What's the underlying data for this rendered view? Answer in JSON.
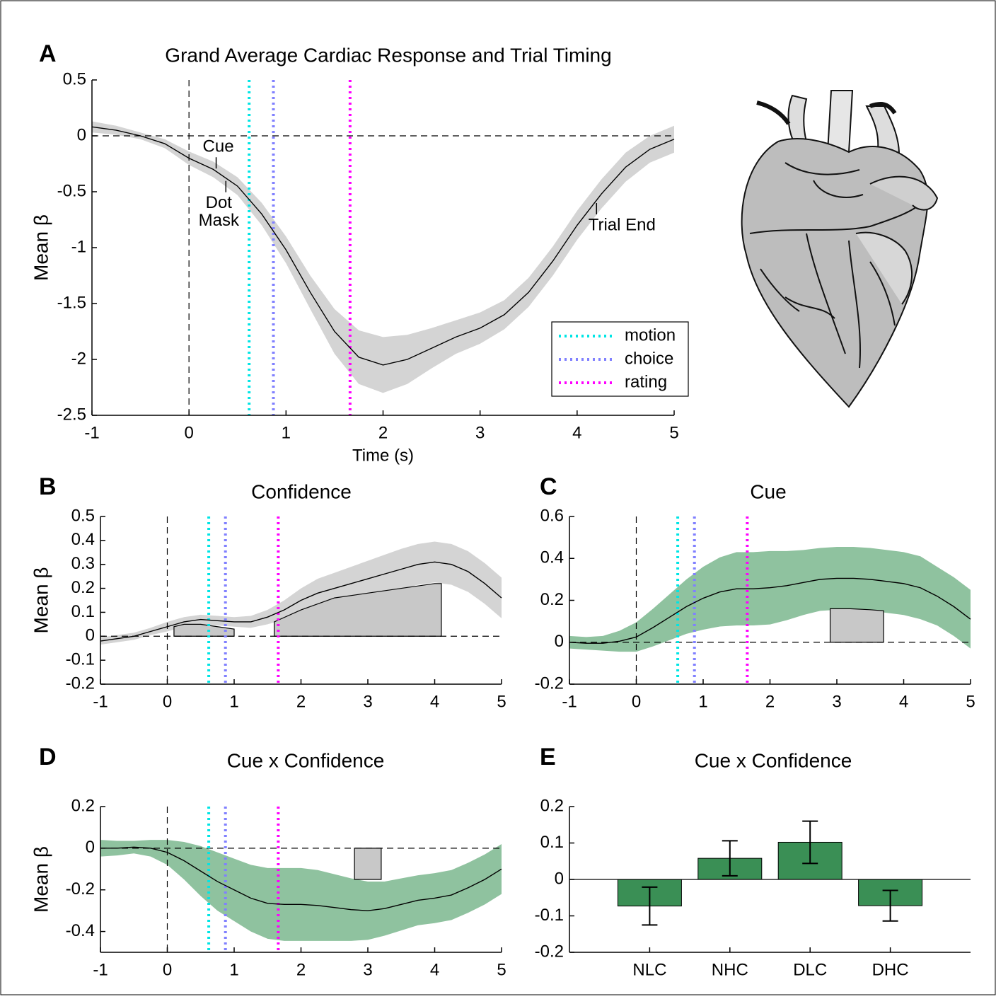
{
  "chart_data": [
    {
      "type": "line",
      "panel": "A",
      "title": "Grand Average Cardiac Response and Trial Timing",
      "x_label": "Time (s)",
      "y_label": "Mean β",
      "x": [
        -1,
        -0.75,
        -0.5,
        -0.25,
        0,
        0.25,
        0.5,
        0.75,
        1,
        1.25,
        1.5,
        1.75,
        2,
        2.25,
        2.5,
        2.75,
        3,
        3.25,
        3.5,
        3.75,
        4,
        4.25,
        4.5,
        4.75,
        5
      ],
      "series": [
        {
          "color": "#000000",
          "band_color": "#d4d4d4",
          "values": [
            0.08,
            0.05,
            0.0,
            -0.07,
            -0.2,
            -0.3,
            -0.45,
            -0.7,
            -1.02,
            -1.4,
            -1.75,
            -1.98,
            -2.05,
            -2.0,
            -1.9,
            -1.8,
            -1.72,
            -1.6,
            -1.4,
            -1.12,
            -0.8,
            -0.52,
            -0.28,
            -0.12,
            -0.03
          ],
          "error": [
            0.05,
            0.04,
            0.03,
            0.04,
            0.06,
            0.07,
            0.08,
            0.1,
            0.12,
            0.15,
            0.2,
            0.24,
            0.25,
            0.22,
            0.18,
            0.15,
            0.14,
            0.13,
            0.13,
            0.13,
            0.13,
            0.13,
            0.13,
            0.12,
            0.12
          ]
        }
      ],
      "markers": [
        {
          "name": "motion",
          "color": "#00e5e5",
          "x": 0.62
        },
        {
          "name": "choice",
          "color": "#8080ff",
          "x": 0.87
        },
        {
          "name": "rating",
          "color": "#ff00ff",
          "x": 1.66
        }
      ],
      "annotations": [
        {
          "lines": [
            "Cue"
          ],
          "x": 0.28
        },
        {
          "lines": [
            "Dot",
            "Mask"
          ],
          "x": 0.38
        },
        {
          "lines": [
            "Trial End"
          ],
          "x": 4.2
        }
      ],
      "legend": "lower right",
      "xlim": [
        -1,
        5
      ],
      "xticks": [
        -1,
        0,
        1,
        2,
        3,
        4,
        5
      ],
      "ylim": [
        -2.5,
        0.5
      ],
      "yticks": [
        -2.5,
        -2,
        -1.5,
        -1,
        -0.5,
        0,
        0.5
      ]
    },
    {
      "type": "line",
      "panel": "B",
      "title": "Confidence",
      "y_label": "Mean β",
      "x": [
        -1,
        -0.75,
        -0.5,
        -0.25,
        0,
        0.25,
        0.5,
        0.75,
        1,
        1.25,
        1.5,
        1.75,
        2,
        2.25,
        2.5,
        2.75,
        3,
        3.25,
        3.5,
        3.75,
        4,
        4.25,
        4.5,
        4.75,
        5
      ],
      "series": [
        {
          "color": "#000000",
          "band_color": "#d4d4d4",
          "values": [
            -0.02,
            -0.01,
            0.0,
            0.02,
            0.04,
            0.06,
            0.07,
            0.065,
            0.06,
            0.06,
            0.08,
            0.11,
            0.15,
            0.18,
            0.2,
            0.22,
            0.24,
            0.26,
            0.28,
            0.3,
            0.31,
            0.3,
            0.27,
            0.22,
            0.16
          ],
          "error": [
            0.015,
            0.015,
            0.015,
            0.015,
            0.02,
            0.02,
            0.02,
            0.02,
            0.02,
            0.025,
            0.03,
            0.04,
            0.05,
            0.06,
            0.065,
            0.07,
            0.075,
            0.08,
            0.085,
            0.085,
            0.085,
            0.085,
            0.085,
            0.085,
            0.085
          ]
        }
      ],
      "markers": [
        {
          "color": "#00e5e5",
          "x": 0.62
        },
        {
          "color": "#8080ff",
          "x": 0.87
        },
        {
          "color": "#ff00ff",
          "x": 1.66
        }
      ],
      "regions": [
        {
          "x": [
            0.1,
            0.25,
            0.5,
            0.75,
            1.0
          ],
          "values": [
            0.04,
            0.05,
            0.05,
            0.04,
            0.03
          ]
        },
        {
          "x": [
            1.6,
            2,
            2.5,
            3,
            3.5,
            4,
            4.1
          ],
          "values": [
            0.06,
            0.11,
            0.16,
            0.18,
            0.2,
            0.22,
            0.22
          ]
        }
      ],
      "xlim": [
        -1,
        5
      ],
      "xticks": [
        -1,
        0,
        1,
        2,
        3,
        4,
        5
      ],
      "ylim": [
        -0.2,
        0.5
      ],
      "yticks": [
        -0.2,
        -0.1,
        0,
        0.1,
        0.2,
        0.3,
        0.4,
        0.5
      ]
    },
    {
      "type": "line",
      "panel": "C",
      "title": "Cue",
      "x": [
        -1,
        -0.75,
        -0.5,
        -0.25,
        0,
        0.25,
        0.5,
        0.75,
        1,
        1.25,
        1.5,
        1.75,
        2,
        2.25,
        2.5,
        2.75,
        3,
        3.25,
        3.5,
        3.75,
        4,
        4.25,
        4.5,
        4.75,
        5
      ],
      "series": [
        {
          "color": "#000000",
          "band_color": "#8fc29f",
          "values": [
            0.0,
            -0.005,
            -0.005,
            0.005,
            0.025,
            0.07,
            0.12,
            0.17,
            0.21,
            0.24,
            0.255,
            0.255,
            0.26,
            0.27,
            0.285,
            0.3,
            0.305,
            0.305,
            0.3,
            0.29,
            0.28,
            0.26,
            0.22,
            0.17,
            0.11
          ],
          "error": [
            0.03,
            0.03,
            0.035,
            0.05,
            0.07,
            0.09,
            0.11,
            0.13,
            0.15,
            0.165,
            0.175,
            0.175,
            0.175,
            0.165,
            0.155,
            0.15,
            0.15,
            0.15,
            0.15,
            0.15,
            0.15,
            0.15,
            0.14,
            0.14,
            0.14
          ]
        }
      ],
      "markers": [
        {
          "color": "#00e5e5",
          "x": 0.62
        },
        {
          "color": "#8080ff",
          "x": 0.87
        },
        {
          "color": "#ff00ff",
          "x": 1.66
        }
      ],
      "regions": [
        {
          "x": [
            2.9,
            3.2,
            3.5,
            3.7
          ],
          "values": [
            0.16,
            0.16,
            0.155,
            0.15
          ]
        }
      ],
      "xlim": [
        -1,
        5
      ],
      "xticks": [
        -1,
        0,
        1,
        2,
        3,
        4,
        5
      ],
      "ylim": [
        -0.2,
        0.6
      ],
      "yticks": [
        -0.2,
        0,
        0.2,
        0.4,
        0.6
      ]
    },
    {
      "type": "line",
      "panel": "D",
      "title": "Cue x Confidence",
      "y_label": "Mean β",
      "x": [
        -1,
        -0.75,
        -0.5,
        -0.25,
        0,
        0.25,
        0.5,
        0.75,
        1,
        1.25,
        1.5,
        1.75,
        2,
        2.25,
        2.5,
        2.75,
        3,
        3.25,
        3.5,
        3.75,
        4,
        4.25,
        4.5,
        4.75,
        5
      ],
      "series": [
        {
          "color": "#000000",
          "band_color": "#8fc29f",
          "values": [
            0.0,
            0.0,
            0.005,
            0.0,
            -0.02,
            -0.06,
            -0.11,
            -0.16,
            -0.2,
            -0.24,
            -0.265,
            -0.27,
            -0.27,
            -0.275,
            -0.285,
            -0.295,
            -0.3,
            -0.29,
            -0.27,
            -0.25,
            -0.24,
            -0.225,
            -0.19,
            -0.15,
            -0.1
          ],
          "error": [
            0.04,
            0.035,
            0.03,
            0.04,
            0.06,
            0.09,
            0.12,
            0.14,
            0.15,
            0.16,
            0.17,
            0.175,
            0.175,
            0.17,
            0.16,
            0.15,
            0.14,
            0.13,
            0.125,
            0.12,
            0.12,
            0.12,
            0.12,
            0.12,
            0.12
          ]
        }
      ],
      "markers": [
        {
          "color": "#00e5e5",
          "x": 0.62
        },
        {
          "color": "#8080ff",
          "x": 0.87
        },
        {
          "color": "#ff00ff",
          "x": 1.66
        }
      ],
      "regions": [
        {
          "x": [
            2.8,
            3.2
          ],
          "values": [
            -0.15,
            -0.15
          ]
        }
      ],
      "xlim": [
        -1,
        5
      ],
      "xticks": [
        -1,
        0,
        1,
        2,
        3,
        4,
        5
      ],
      "ylim": [
        -0.5,
        0.2
      ],
      "yticks": [
        -0.4,
        -0.2,
        0,
        0.2
      ]
    },
    {
      "type": "bar",
      "panel": "E",
      "title": "Cue x Confidence",
      "categories": [
        "NLC",
        "NHC",
        "DLC",
        "DHC"
      ],
      "values": [
        -0.073,
        0.058,
        0.102,
        -0.072
      ],
      "errors": [
        0.052,
        0.048,
        0.058,
        0.042
      ],
      "color": "#3a8f55",
      "ylim": [
        -0.2,
        0.2
      ],
      "yticks": [
        -0.2,
        -0.1,
        0,
        0.1,
        0.2
      ]
    }
  ]
}
